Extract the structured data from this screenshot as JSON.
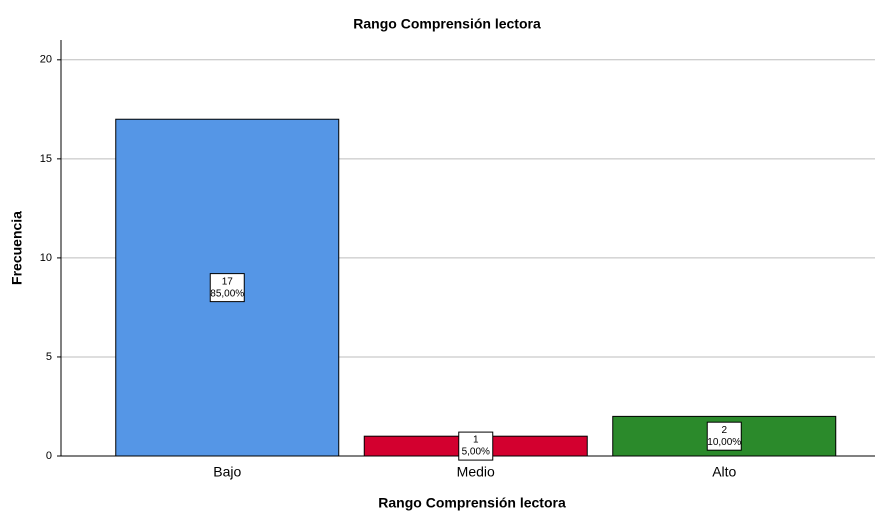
{
  "chart_data": {
    "type": "bar",
    "title": "Rango Comprensión lectora",
    "x_label": "Rango Comprensión lectora",
    "y_label": "Frecuencia",
    "categories": [
      "Bajo",
      "Medio",
      "Alto"
    ],
    "values": [
      17,
      1,
      2
    ],
    "percentages": [
      85,
      5,
      10
    ],
    "percentage_labels": [
      "85,00%",
      "5,00%",
      "10,00%"
    ],
    "colors": [
      "#5596e6",
      "#d3002f",
      "#2b8a2b"
    ],
    "ylim": [
      0,
      21
    ],
    "yticks": [
      0,
      5,
      10,
      15,
      20
    ],
    "grid": true
  }
}
